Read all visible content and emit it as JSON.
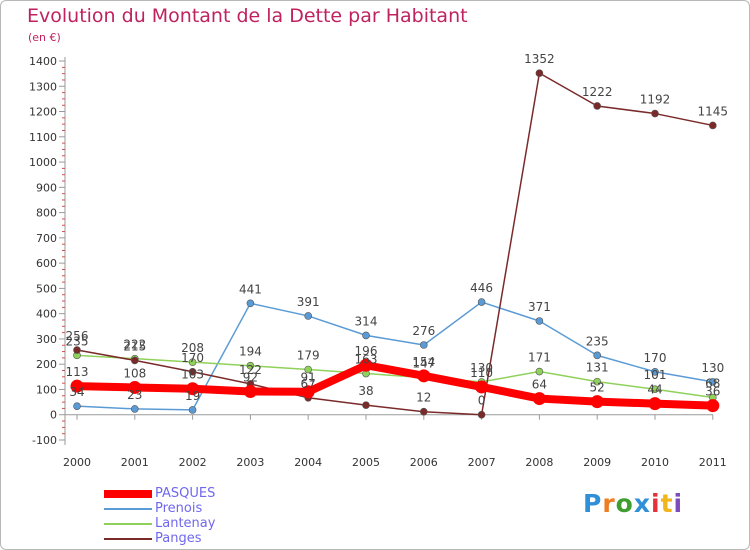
{
  "title": "Evolution du Montant de la Dette par Habitant",
  "subtitle": "(en €)",
  "logo": {
    "text": "Proxiti",
    "letter_colors": [
      "#2f8fd8",
      "#ef7e22",
      "#3f9e2f",
      "#2f8fd8",
      "#e8303a",
      "#f2b51b",
      "#7c4bc0"
    ]
  },
  "chart_data": {
    "type": "line",
    "title": "Evolution du Montant de la Dette par Habitant",
    "subtitle": "(en €)",
    "x": [
      "2000",
      "2001",
      "2002",
      "2003",
      "2004",
      "2005",
      "2006",
      "2007",
      "2008",
      "2009",
      "2010",
      "2011"
    ],
    "ylim": [
      -100,
      1400
    ],
    "yticks": [
      "-100",
      "0",
      "100",
      "200",
      "300",
      "400",
      "500",
      "600",
      "700",
      "800",
      "900",
      "1000",
      "1100",
      "1200",
      "1300",
      "1400"
    ],
    "grid": false,
    "legend_position": "bottom-left",
    "series": [
      {
        "name": "PASQUES",
        "color": "#ff0000",
        "values": [
          113,
          108,
          103,
          92,
          91,
          196,
          154,
          110,
          64,
          52,
          44,
          36
        ]
      },
      {
        "name": "Prenois",
        "color": "#5b9bd5",
        "values": [
          34,
          23,
          19,
          441,
          391,
          314,
          276,
          446,
          371,
          235,
          170,
          130
        ]
      },
      {
        "name": "Lantenay",
        "color": "#8fd15a",
        "values": [
          235,
          222,
          208,
          194,
          179,
          163,
          147,
          130,
          171,
          131,
          101,
          68
        ]
      },
      {
        "name": "Panges",
        "color": "#7b2a2a",
        "values": [
          256,
          215,
          170,
          122,
          67,
          38,
          12,
          0,
          1352,
          1222,
          1192,
          1145
        ]
      }
    ]
  }
}
